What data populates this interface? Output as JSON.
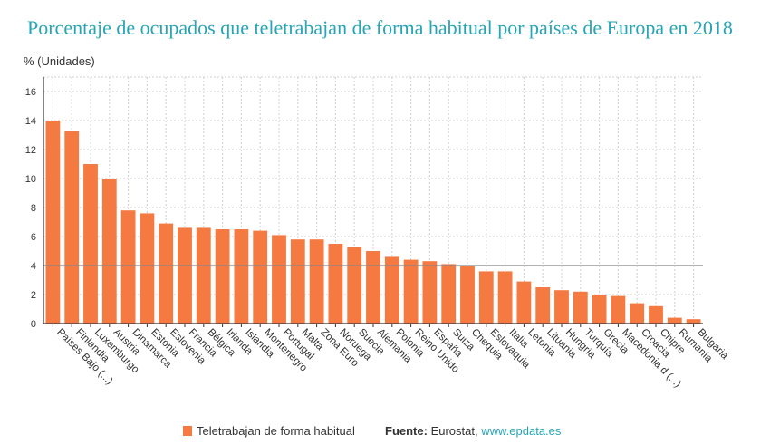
{
  "title": "Porcentaje de ocupados que teletrabajan de forma habitual por países de Europa en 2018",
  "colors": {
    "bar": "#f47a42",
    "title": "#25a5b5",
    "link": "#25a5b5",
    "grid": "#d0d0d0",
    "reference_line": "#888888"
  },
  "chart_data": {
    "type": "bar",
    "title": "Porcentaje de ocupados que teletrabajan de forma habitual por países de Europa en 2018",
    "ylabel": "% (Unidades)",
    "xlabel": "",
    "ylim": [
      0,
      17
    ],
    "yticks": [
      0,
      2,
      4,
      6,
      8,
      10,
      12,
      14,
      16
    ],
    "grid": true,
    "reference_line": 4,
    "legend_position": "bottom",
    "categories": [
      "Países Bajo (...)",
      "Finlandia",
      "Luxemburgo",
      "Austria",
      "Dinamarca",
      "Estonia",
      "Eslovenia",
      "Francia",
      "Bélgica",
      "Irlanda",
      "Islandia",
      "Montenegro",
      "Portugal",
      "Malta",
      "Zona Euro",
      "Noruega",
      "Suecia",
      "Alemania",
      "Polonia",
      "Reino Unido",
      "España",
      "Suiza",
      "Chequia",
      "Eslovaquia",
      "Italia",
      "Letonia",
      "Lituania",
      "Hungría",
      "Turquía",
      "Grecia",
      "Macedonia d (...)",
      "Croacia",
      "Chipre",
      "Rumanía",
      "Bulgaria"
    ],
    "series": [
      {
        "name": "Teletrabajan de forma habitual",
        "values": [
          14.0,
          13.3,
          11.0,
          10.0,
          7.8,
          7.6,
          6.9,
          6.6,
          6.6,
          6.5,
          6.5,
          6.4,
          6.1,
          5.8,
          5.8,
          5.5,
          5.3,
          5.0,
          4.6,
          4.4,
          4.3,
          4.1,
          4.0,
          3.6,
          3.6,
          2.9,
          2.5,
          2.3,
          2.2,
          2.0,
          1.9,
          1.4,
          1.2,
          0.4,
          0.3
        ]
      }
    ]
  },
  "footer": {
    "legend_label": "Teletrabajan de forma habitual",
    "source_label": "Fuente:",
    "source_text": "Eurostat,",
    "source_link": "www.epdata.es"
  }
}
